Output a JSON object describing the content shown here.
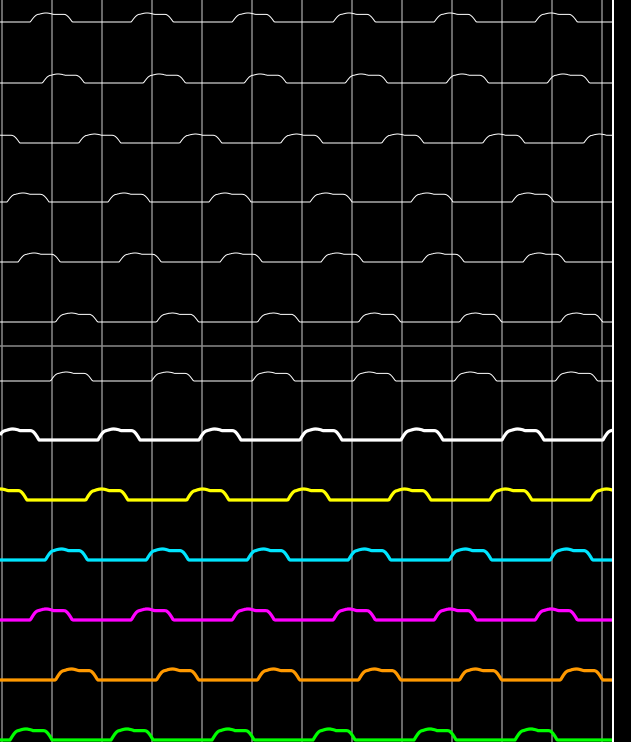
{
  "display": {
    "background": "#000000",
    "grid_color": "#8a8a8a",
    "right_border_color": "#ffffff"
  },
  "traces": [
    {
      "id": "trace-1",
      "color": "#ffffff",
      "weight": "thin",
      "pulse_phase": 0.3
    },
    {
      "id": "trace-2",
      "color": "#ffffff",
      "weight": "thin",
      "pulse_phase": 0.42
    },
    {
      "id": "trace-3",
      "color": "#ffffff",
      "weight": "thin",
      "pulse_phase": 0.78
    },
    {
      "id": "trace-4",
      "color": "#ffffff",
      "weight": "thin",
      "pulse_phase": 0.07
    },
    {
      "id": "trace-5",
      "color": "#ffffff",
      "weight": "thin",
      "pulse_phase": 0.18
    },
    {
      "id": "trace-6",
      "color": "#ffffff",
      "weight": "thin",
      "pulse_phase": 0.55
    },
    {
      "id": "trace-7",
      "color": "#ffffff",
      "weight": "thin",
      "pulse_phase": 0.5
    },
    {
      "id": "trace-8",
      "color": "#ffffff",
      "weight": "thick",
      "pulse_phase": 0.97
    },
    {
      "id": "trace-9",
      "color": "#ffff00",
      "weight": "thick",
      "pulse_phase": 0.85
    },
    {
      "id": "trace-10",
      "color": "#00e5ff",
      "weight": "thick",
      "pulse_phase": 0.45
    },
    {
      "id": "trace-11",
      "color": "#ff00ff",
      "weight": "thick",
      "pulse_phase": 0.3
    },
    {
      "id": "trace-12",
      "color": "#ff9900",
      "weight": "thick",
      "pulse_phase": 0.55
    },
    {
      "id": "trace-13",
      "color": "#00ff00",
      "weight": "thick",
      "pulse_phase": 0.1
    }
  ]
}
